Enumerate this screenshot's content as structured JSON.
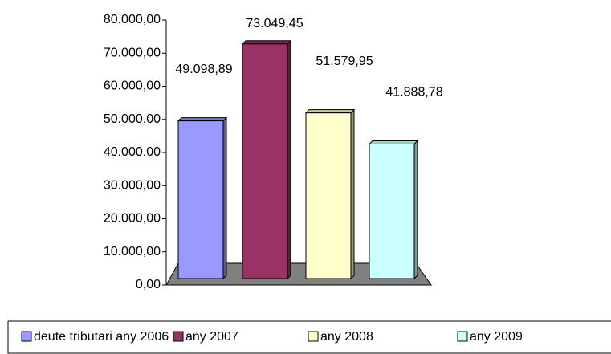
{
  "chart_data": {
    "type": "bar3d",
    "ylim": [
      0,
      80000
    ],
    "yticks": [
      {
        "value": 0,
        "label": "0,00"
      },
      {
        "value": 10000,
        "label": "10.000,00"
      },
      {
        "value": 20000,
        "label": "20.000,00"
      },
      {
        "value": 30000,
        "label": "30.000,00"
      },
      {
        "value": 40000,
        "label": "40.000,00"
      },
      {
        "value": 50000,
        "label": "50.000,00"
      },
      {
        "value": 60000,
        "label": "60.000,00"
      },
      {
        "value": 70000,
        "label": "70.000,00"
      },
      {
        "value": 80000,
        "label": "80.000,00"
      }
    ],
    "series": [
      {
        "name": "deute tributari any 2006",
        "color": "#9999ff",
        "values": [
          49098.89
        ],
        "value_labels": [
          "49.098,89"
        ]
      },
      {
        "name": "any 2007",
        "color": "#993366",
        "values": [
          73049.45
        ],
        "value_labels": [
          "73.049,45"
        ]
      },
      {
        "name": "any 2008",
        "color": "#ffffcc",
        "values": [
          51579.95
        ],
        "value_labels": [
          "51.579,95"
        ]
      },
      {
        "name": "any 2009",
        "color": "#ccffff",
        "values": [
          41888.78
        ],
        "value_labels": [
          "41.888,78"
        ]
      }
    ],
    "legend": "bottom"
  }
}
